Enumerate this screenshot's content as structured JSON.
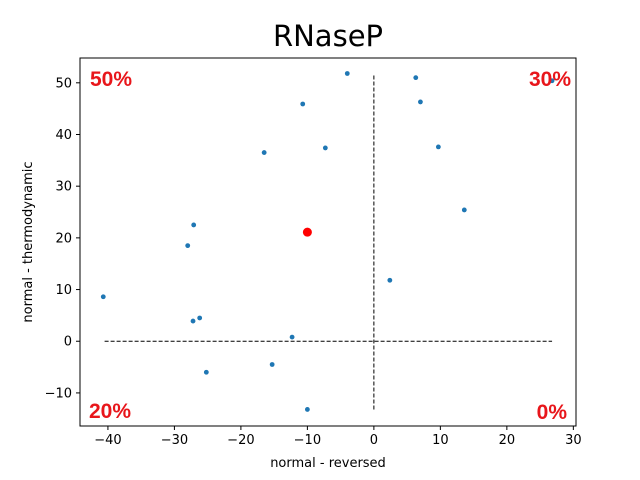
{
  "chart_data": {
    "type": "scatter",
    "title": "RNaseP",
    "xlabel": "normal - reversed",
    "ylabel": "normal - thermodynamic",
    "xlim": [
      -44.2,
      30.4
    ],
    "ylim": [
      -16.4,
      54.8
    ],
    "xticks": [
      -40,
      -30,
      -20,
      -10,
      0,
      10,
      20,
      30
    ],
    "yticks": [
      -10,
      0,
      10,
      20,
      30,
      40,
      50
    ],
    "xtick_labels": [
      "−40",
      "−30",
      "−20",
      "−10",
      "0",
      "10",
      "20",
      "30"
    ],
    "ytick_labels": [
      "−10",
      "0",
      "10",
      "20",
      "30",
      "40",
      "50"
    ],
    "grid": false,
    "series": [
      {
        "color": "#1f77b4",
        "points": [
          {
            "x": -40.7,
            "y": 8.6
          },
          {
            "x": -28.0,
            "y": 18.5
          },
          {
            "x": -27.1,
            "y": 22.5
          },
          {
            "x": -27.2,
            "y": 3.9
          },
          {
            "x": -26.2,
            "y": 4.5
          },
          {
            "x": -25.2,
            "y": -6.0
          },
          {
            "x": -16.5,
            "y": 36.5
          },
          {
            "x": -15.3,
            "y": -4.5
          },
          {
            "x": -12.3,
            "y": 0.8
          },
          {
            "x": -10.7,
            "y": 45.9
          },
          {
            "x": -10.0,
            "y": -13.2
          },
          {
            "x": -7.3,
            "y": 37.4
          },
          {
            "x": -4.0,
            "y": 51.8
          },
          {
            "x": 2.4,
            "y": 11.8
          },
          {
            "x": 6.3,
            "y": 51.0
          },
          {
            "x": 7.0,
            "y": 46.3
          },
          {
            "x": 9.7,
            "y": 37.6
          },
          {
            "x": 13.6,
            "y": 25.4
          },
          {
            "x": 26.8,
            "y": 50.4
          }
        ]
      },
      {
        "color": "#ff0000",
        "points": [
          {
            "x": -10.0,
            "y": 21.1
          }
        ]
      }
    ],
    "reference_lines": [
      {
        "orientation": "horizontal",
        "y": 0,
        "from": -40.5,
        "to": 26.8,
        "style": "dashed"
      },
      {
        "orientation": "vertical",
        "x": 0,
        "from": -13.2,
        "to": 51.8,
        "style": "dashed"
      }
    ],
    "annotations": [
      {
        "text": "50%",
        "position": "top-left",
        "color": "#e8161b"
      },
      {
        "text": "30%",
        "position": "top-right",
        "color": "#e8161b"
      },
      {
        "text": "20%",
        "position": "bottom-left",
        "color": "#e8161b"
      },
      {
        "text": "0%",
        "position": "bottom-right",
        "color": "#e8161b"
      }
    ]
  }
}
